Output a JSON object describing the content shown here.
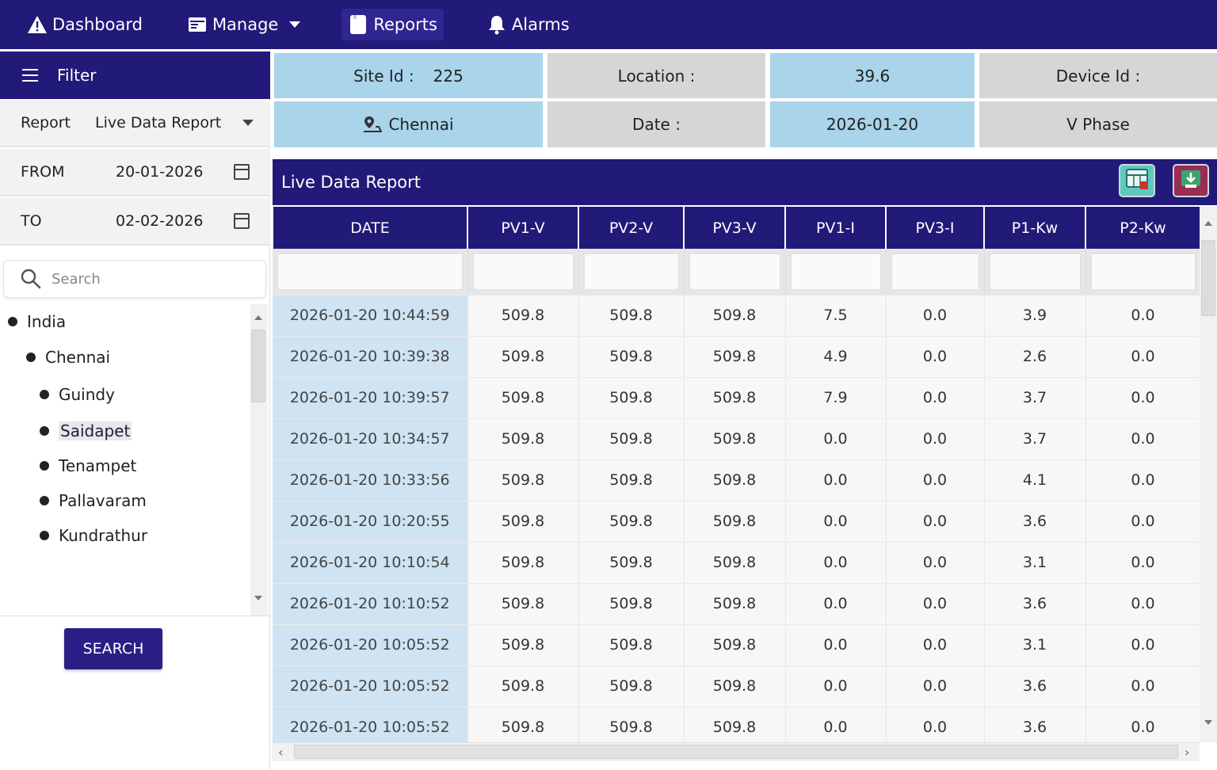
{
  "nav": {
    "items": [
      {
        "label": "Dashboard",
        "icon": "warning-icon"
      },
      {
        "label": "Manage",
        "icon": "window-icon"
      },
      {
        "label": "Reports",
        "icon": "document-icon"
      },
      {
        "label": "Alarms",
        "icon": "bell-icon"
      }
    ],
    "active": "Reports"
  },
  "sidebar": {
    "filter_label": "Filter",
    "report_label": "Report",
    "report_value": "Live Data Report",
    "from_label": "FROM",
    "from_value": "20-01-2026",
    "to_label": "TO",
    "to_value": "02-02-2026",
    "search_placeholder": "Search",
    "tree": [
      "India",
      "Chennai",
      "Guindy",
      "Saidapet",
      "Tenampet",
      "Pallavaram",
      "Kundrathur"
    ],
    "selected": "Saidapet",
    "search_button": "SEARCH"
  },
  "info": {
    "site_id_label": "Site Id :",
    "site_id_value": "225",
    "location_label": "Location :",
    "location_value": "39.6",
    "device_id_label": "Device Id :",
    "city": "Chennai",
    "date_label": "Date :",
    "date_value": "2026-01-20",
    "phase": "V Phase"
  },
  "report": {
    "title": "Live Data Report",
    "columns": [
      "DATE",
      "PV1-V",
      "PV2-V",
      "PV3-V",
      "PV1-I",
      "PV3-I",
      "P1-Kw",
      "P2-Kw"
    ],
    "rows": [
      [
        "2026-01-20 10:44:59",
        "509.8",
        "509.8",
        "509.8",
        "7.5",
        "0.0",
        "3.9",
        "0.0"
      ],
      [
        "2026-01-20 10:39:38",
        "509.8",
        "509.8",
        "509.8",
        "4.9",
        "0.0",
        "2.6",
        "0.0"
      ],
      [
        "2026-01-20 10:39:57",
        "509.8",
        "509.8",
        "509.8",
        "7.9",
        "0.0",
        "3.7",
        "0.0"
      ],
      [
        "2026-01-20 10:34:57",
        "509.8",
        "509.8",
        "509.8",
        "0.0",
        "0.0",
        "3.7",
        "0.0"
      ],
      [
        "2026-01-20 10:33:56",
        "509.8",
        "509.8",
        "509.8",
        "0.0",
        "0.0",
        "4.1",
        "0.0"
      ],
      [
        "2026-01-20 10:20:55",
        "509.8",
        "509.8",
        "509.8",
        "0.0",
        "0.0",
        "3.6",
        "0.0"
      ],
      [
        "2026-01-20 10:10:54",
        "509.8",
        "509.8",
        "509.8",
        "0.0",
        "0.0",
        "3.1",
        "0.0"
      ],
      [
        "2026-01-20 10:10:52",
        "509.8",
        "509.8",
        "509.8",
        "0.0",
        "0.0",
        "3.6",
        "0.0"
      ],
      [
        "2026-01-20 10:05:52",
        "509.8",
        "509.8",
        "509.8",
        "0.0",
        "0.0",
        "3.1",
        "0.0"
      ],
      [
        "2026-01-20 10:05:52",
        "509.8",
        "509.8",
        "509.8",
        "0.0",
        "0.0",
        "3.6",
        "0.0"
      ],
      [
        "2026-01-20 10:05:52",
        "509.8",
        "509.8",
        "509.8",
        "0.0",
        "0.0",
        "3.6",
        "0.0"
      ]
    ]
  },
  "colors": {
    "primary": "#221a78",
    "cell_blue": "#a9d4ea",
    "cell_grey": "#d6d6d6",
    "excel": "#5fc9c0",
    "pdf": "#9a2d55"
  }
}
